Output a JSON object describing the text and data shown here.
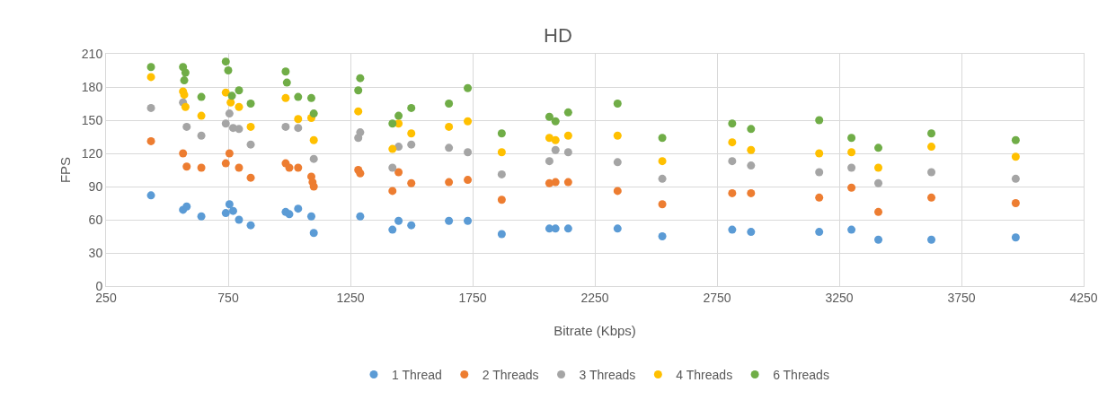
{
  "chart_data": {
    "type": "scatter",
    "title": "HD",
    "xlabel": "Bitrate (Kbps)",
    "ylabel": "FPS",
    "xlim": [
      250,
      4250
    ],
    "xticks": [
      250,
      750,
      1250,
      1750,
      2250,
      2750,
      3250,
      3750,
      4250
    ],
    "ylim": [
      0,
      210
    ],
    "yticks": [
      0,
      30,
      60,
      90,
      120,
      150,
      180,
      210
    ],
    "grid": true,
    "legend": "bottom",
    "marker": "circle",
    "series": [
      {
        "name": "1 Thread",
        "color": "#5b9bd5",
        "x": [
          434,
          565,
          580,
          640,
          740,
          755,
          770,
          794,
          842,
          985,
          1000,
          1036,
          1090,
          1100,
          1282,
          1290,
          1422,
          1447,
          1499,
          1653,
          1730,
          1869,
          2064,
          2089,
          2141,
          2343,
          2526,
          2812,
          2889,
          3168,
          3300,
          3410,
          3627,
          3972
        ],
        "values": [
          82,
          69,
          72,
          63,
          66,
          74,
          68,
          60,
          55,
          67,
          65,
          70,
          63,
          48,
          null,
          63,
          51,
          59,
          55,
          59,
          59,
          47,
          52,
          52,
          52,
          52,
          45,
          51,
          49,
          49,
          51,
          42,
          42,
          44
        ]
      },
      {
        "name": "2 Threads",
        "color": "#ed7d31",
        "x": [
          434,
          565,
          580,
          640,
          740,
          755,
          794,
          842,
          985,
          1000,
          1036,
          1090,
          1095,
          1100,
          1282,
          1290,
          1422,
          1447,
          1499,
          1653,
          1730,
          1869,
          2064,
          2089,
          2141,
          2343,
          2526,
          2812,
          2889,
          3168,
          3300,
          3410,
          3627,
          3972
        ],
        "values": [
          131,
          120,
          108,
          107,
          111,
          120,
          107,
          98,
          111,
          107,
          107,
          99,
          94,
          90,
          105,
          102,
          86,
          103,
          93,
          94,
          96,
          78,
          93,
          94,
          94,
          86,
          74,
          84,
          84,
          80,
          89,
          67,
          80,
          75
        ]
      },
      {
        "name": "3 Threads",
        "color": "#a5a5a5",
        "x": [
          434,
          565,
          580,
          640,
          740,
          755,
          770,
          794,
          842,
          985,
          1036,
          1090,
          1100,
          1282,
          1290,
          1422,
          1447,
          1499,
          1653,
          1730,
          1869,
          2064,
          2089,
          2141,
          2343,
          2526,
          2812,
          2889,
          3168,
          3300,
          3410,
          3627,
          3972
        ],
        "values": [
          161,
          166,
          144,
          136,
          147,
          156,
          143,
          142,
          128,
          144,
          143,
          null,
          115,
          134,
          139,
          107,
          126,
          128,
          125,
          121,
          101,
          113,
          123,
          121,
          112,
          97,
          113,
          109,
          103,
          107,
          93,
          103,
          97
        ]
      },
      {
        "name": "4 Threads",
        "color": "#ffc000",
        "x": [
          434,
          565,
          570,
          575,
          640,
          740,
          760,
          794,
          842,
          985,
          1036,
          1090,
          1095,
          1100,
          1282,
          1422,
          1447,
          1499,
          1653,
          1730,
          1869,
          2064,
          2089,
          2141,
          2343,
          2526,
          2812,
          2889,
          3168,
          3300,
          3410,
          3627,
          3972
        ],
        "values": [
          189,
          176,
          173,
          162,
          154,
          175,
          166,
          162,
          144,
          170,
          151,
          152,
          null,
          132,
          158,
          124,
          147,
          138,
          144,
          149,
          121,
          134,
          132,
          136,
          136,
          113,
          130,
          123,
          120,
          121,
          107,
          126,
          117
        ]
      },
      {
        "name": "6 Threads",
        "color": "#70ad47",
        "x": [
          434,
          565,
          575,
          570,
          640,
          740,
          750,
          765,
          794,
          842,
          985,
          990,
          1036,
          1090,
          1100,
          1282,
          1290,
          1422,
          1447,
          1499,
          1653,
          1730,
          1869,
          2064,
          2089,
          2141,
          2343,
          2526,
          2812,
          2889,
          3168,
          3300,
          3410,
          3627,
          3972
        ],
        "values": [
          198,
          198,
          193,
          186,
          171,
          203,
          195,
          172,
          177,
          165,
          194,
          184,
          171,
          170,
          156,
          177,
          188,
          147,
          154,
          161,
          165,
          179,
          138,
          153,
          149,
          157,
          165,
          134,
          147,
          142,
          150,
          134,
          125,
          138,
          132
        ]
      }
    ]
  }
}
